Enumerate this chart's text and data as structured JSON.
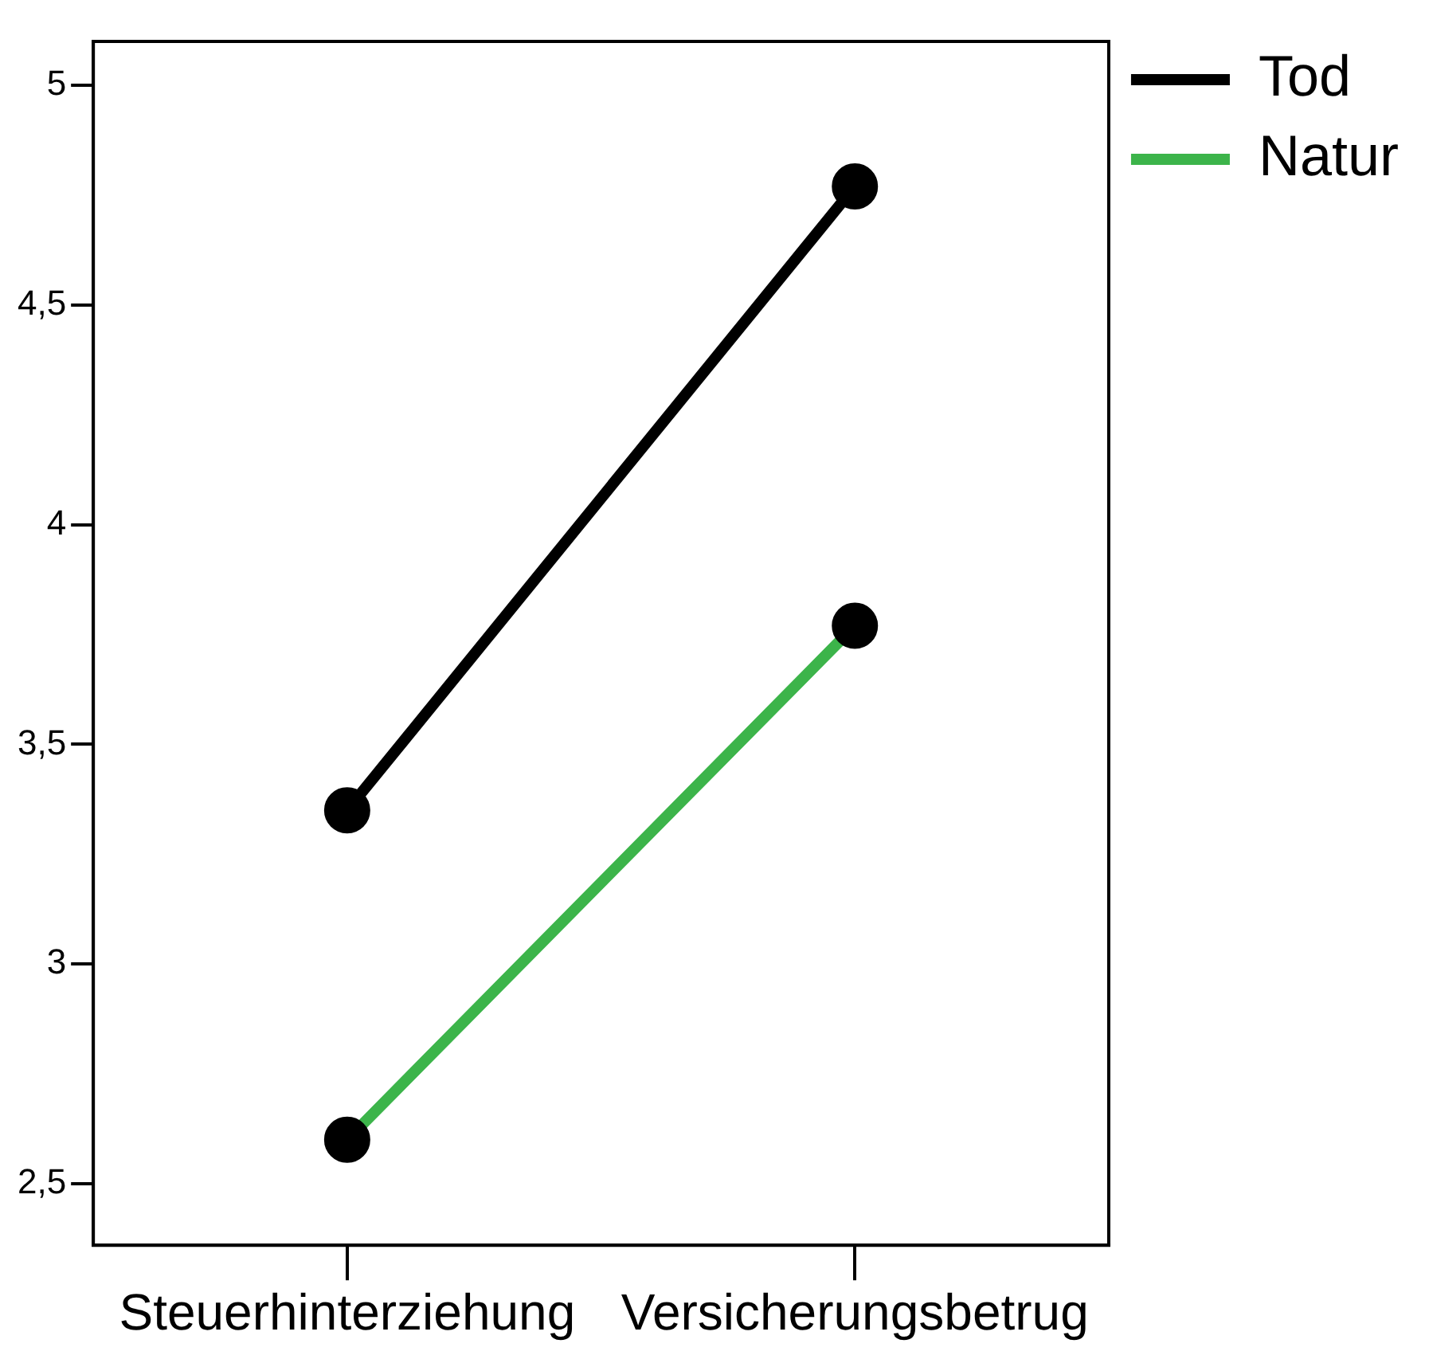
{
  "chart_data": {
    "type": "line",
    "categories": [
      "Steuerhinterziehung",
      "Versicherungsbetrug"
    ],
    "series": [
      {
        "name": "Tod",
        "color": "#000000",
        "values": [
          3.35,
          4.77
        ]
      },
      {
        "name": "Natur",
        "color": "#3cb44a",
        "values": [
          2.6,
          3.77
        ]
      }
    ],
    "ylim": [
      2.36,
      5.1
    ],
    "yticks": [
      {
        "value": 2.5,
        "label": "2,5"
      },
      3,
      {
        "value": 3.5,
        "label": "3,5"
      },
      4,
      {
        "value": 4.5,
        "label": "4,5"
      },
      5
    ],
    "marker": "circle",
    "legend": "right"
  }
}
